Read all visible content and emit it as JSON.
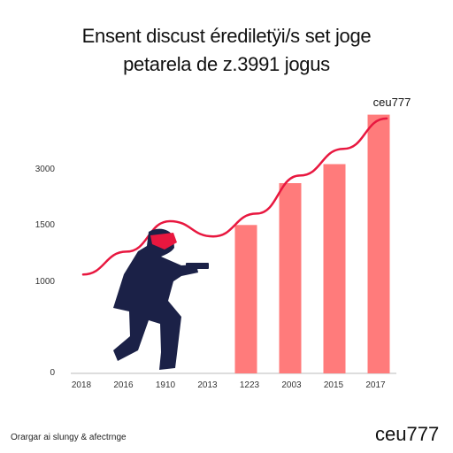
{
  "chart_data": {
    "type": "bar",
    "title": "Ensent discust érediletÿi/s set joge",
    "subtitle": "petarela de z.3991 jogus",
    "categories": [
      "2018",
      "2016",
      "1910",
      "2013",
      "1223",
      "2003",
      "2015",
      "2017"
    ],
    "values": [
      0,
      0,
      0,
      0,
      1950,
      2500,
      2750,
      3400
    ],
    "ytick_labels": [
      "0",
      "1000",
      "1500",
      "3000"
    ],
    "bar_label": "ceu777",
    "trend_line": [
      1300,
      1600,
      2000,
      1800,
      2100,
      2600,
      2950,
      3350
    ],
    "colors": {
      "bar": "#ff7b7b",
      "line": "#e8173f",
      "figure": "#1b2147",
      "figure_accent": "#e8173f"
    },
    "grid": false,
    "legend": "none"
  },
  "footer": {
    "note": "Orargar ai slungy & afectrnge",
    "brand": "ceu777"
  }
}
